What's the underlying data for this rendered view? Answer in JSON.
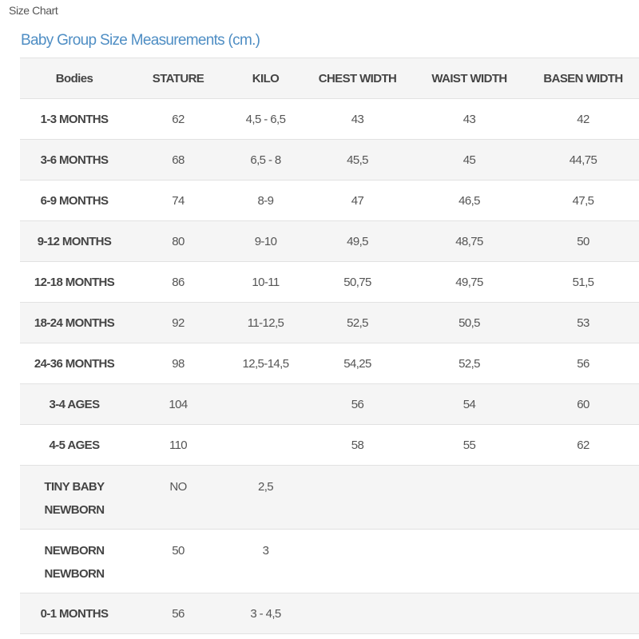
{
  "page_title": "Size Chart",
  "table_title": "Baby Group Size Measurements (cm.)",
  "headers": [
    "Bodies",
    "STATURE",
    "KILO",
    "CHEST WIDTH",
    "WAIST WIDTH",
    "BASEN WIDTH"
  ],
  "rows": [
    [
      "1-3 MONTHS",
      "62",
      "4,5 - 6,5",
      "43",
      "43",
      "42"
    ],
    [
      "3-6 MONTHS",
      "68",
      "6,5 - 8",
      "45,5",
      "45",
      "44,75"
    ],
    [
      "6-9 MONTHS",
      "74",
      "8-9",
      "47",
      "46,5",
      "47,5"
    ],
    [
      "9-12 MONTHS",
      "80",
      "9-10",
      "49,5",
      "48,75",
      "50"
    ],
    [
      "12-18 MONTHS",
      "86",
      "10-11",
      "50,75",
      "49,75",
      "51,5"
    ],
    [
      "18-24 MONTHS",
      "92",
      "11-12,5",
      "52,5",
      "50,5",
      "53"
    ],
    [
      "24-36 MONTHS",
      "98",
      "12,5-14,5",
      "54,25",
      "52,5",
      "56"
    ],
    [
      "3-4 AGES",
      "104",
      "",
      "56",
      "54",
      "60"
    ],
    [
      "4-5 AGES",
      "110",
      "",
      "58",
      "55",
      "62"
    ],
    [
      "TINY BABY\nNEWBORN",
      "NO",
      "2,5",
      "",
      "",
      ""
    ],
    [
      "NEWBORN\nNEWBORN",
      "50",
      "3",
      "",
      "",
      ""
    ],
    [
      "0-1 MONTHS",
      "56",
      "3 - 4,5",
      "",
      "",
      ""
    ]
  ],
  "colors": {
    "title_blue": "#4f8ec4",
    "stripe": "#f5f5f5",
    "border": "#e2e2e2"
  }
}
